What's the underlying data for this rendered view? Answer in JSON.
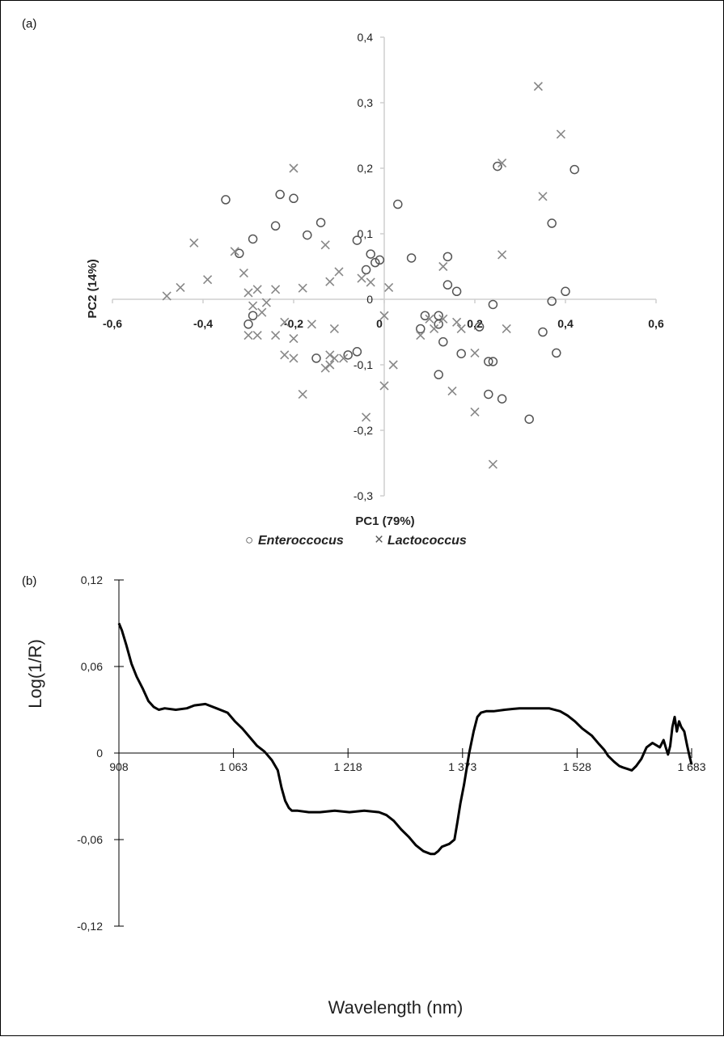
{
  "chart_data": [
    {
      "panel_label": "(a)",
      "type": "scatter",
      "xlabel": "PC1 (79%)",
      "ylabel": "PC2 (14%)",
      "xlim": [
        -0.6,
        0.6
      ],
      "ylim": [
        -0.3,
        0.4
      ],
      "x_ticks": [
        "-0,6",
        "-0,4",
        "-0,2",
        "0",
        "0,2",
        "0,4",
        "0,6"
      ],
      "y_ticks": [
        "0,4",
        "0,3",
        "0,2",
        "0,1",
        "0",
        "-0,1",
        "-0,2",
        "-0,3"
      ],
      "legend_position": "bottom",
      "series": [
        {
          "name": "Enteroccocus",
          "marker": "circle",
          "color": "#555555",
          "points": [
            [
              -0.35,
              0.152
            ],
            [
              -0.23,
              0.16
            ],
            [
              -0.2,
              0.154
            ],
            [
              -0.14,
              0.117
            ],
            [
              -0.24,
              0.112
            ],
            [
              -0.17,
              0.098
            ],
            [
              -0.29,
              0.092
            ],
            [
              -0.32,
              0.07
            ],
            [
              -0.06,
              0.09
            ],
            [
              -0.03,
              0.069
            ],
            [
              -0.01,
              0.06
            ],
            [
              -0.02,
              0.056
            ],
            [
              -0.04,
              0.045
            ],
            [
              0.03,
              0.145
            ],
            [
              0.06,
              0.063
            ],
            [
              0.14,
              0.065
            ],
            [
              0.14,
              0.022
            ],
            [
              0.16,
              0.012
            ],
            [
              -0.29,
              -0.025
            ],
            [
              -0.3,
              -0.038
            ],
            [
              -0.15,
              -0.09
            ],
            [
              -0.06,
              -0.08
            ],
            [
              -0.08,
              -0.085
            ],
            [
              0.09,
              -0.025
            ],
            [
              0.12,
              -0.025
            ],
            [
              0.08,
              -0.045
            ],
            [
              0.12,
              -0.038
            ],
            [
              0.13,
              -0.065
            ],
            [
              0.17,
              -0.083
            ],
            [
              0.21,
              -0.042
            ],
            [
              0.23,
              -0.095
            ],
            [
              0.24,
              -0.095
            ],
            [
              0.24,
              -0.008
            ],
            [
              0.12,
              -0.115
            ],
            [
              0.23,
              -0.145
            ],
            [
              0.26,
              -0.152
            ],
            [
              0.32,
              -0.183
            ],
            [
              0.25,
              0.203
            ],
            [
              0.42,
              0.198
            ],
            [
              0.37,
              0.116
            ],
            [
              0.37,
              -0.003
            ],
            [
              0.4,
              0.012
            ],
            [
              0.35,
              -0.05
            ],
            [
              0.38,
              -0.082
            ]
          ]
        },
        {
          "name": "Lactococcus",
          "marker": "x",
          "color": "#888888",
          "points": [
            [
              0.34,
              0.325
            ],
            [
              0.39,
              0.252
            ],
            [
              0.26,
              0.208
            ],
            [
              -0.2,
              0.2
            ],
            [
              0.35,
              0.157
            ],
            [
              -0.13,
              0.083
            ],
            [
              -0.42,
              0.086
            ],
            [
              -0.33,
              0.073
            ],
            [
              0.26,
              0.068
            ],
            [
              -0.31,
              0.04
            ],
            [
              0.13,
              0.05
            ],
            [
              -0.1,
              0.042
            ],
            [
              -0.05,
              0.032
            ],
            [
              -0.39,
              0.03
            ],
            [
              -0.12,
              0.027
            ],
            [
              -0.03,
              0.026
            ],
            [
              -0.45,
              0.018
            ],
            [
              -0.24,
              0.015
            ],
            [
              -0.18,
              0.017
            ],
            [
              0.01,
              0.018
            ],
            [
              -0.48,
              0.005
            ],
            [
              -0.3,
              0.01
            ],
            [
              -0.28,
              0.015
            ],
            [
              -0.26,
              -0.005
            ],
            [
              -0.29,
              -0.01
            ],
            [
              -0.27,
              -0.02
            ],
            [
              0.0,
              -0.025
            ],
            [
              0.1,
              -0.03
            ],
            [
              0.13,
              -0.03
            ],
            [
              0.16,
              -0.035
            ],
            [
              -0.22,
              -0.035
            ],
            [
              -0.16,
              -0.038
            ],
            [
              -0.11,
              -0.045
            ],
            [
              0.11,
              -0.045
            ],
            [
              0.17,
              -0.045
            ],
            [
              0.27,
              -0.045
            ],
            [
              -0.3,
              -0.055
            ],
            [
              -0.28,
              -0.055
            ],
            [
              -0.24,
              -0.055
            ],
            [
              -0.2,
              -0.06
            ],
            [
              0.08,
              -0.055
            ],
            [
              -0.22,
              -0.085
            ],
            [
              -0.2,
              -0.09
            ],
            [
              -0.12,
              -0.085
            ],
            [
              -0.11,
              -0.09
            ],
            [
              -0.09,
              -0.09
            ],
            [
              0.02,
              -0.1
            ],
            [
              0.2,
              -0.082
            ],
            [
              -0.12,
              -0.1
            ],
            [
              -0.13,
              -0.105
            ],
            [
              -0.18,
              -0.145
            ],
            [
              0.0,
              -0.132
            ],
            [
              0.15,
              -0.14
            ],
            [
              0.2,
              -0.172
            ],
            [
              -0.04,
              -0.18
            ],
            [
              0.24,
              -0.252
            ]
          ]
        }
      ]
    },
    {
      "panel_label": "(b)",
      "type": "line",
      "xlabel": "Wavelength (nm)",
      "ylabel": "Log(1/R)",
      "xlim": [
        908,
        1683
      ],
      "ylim": [
        -0.12,
        0.12
      ],
      "x_ticks": [
        "908",
        "1 063",
        "1 218",
        "1 373",
        "1 528",
        "1 683"
      ],
      "y_ticks": [
        "0,12",
        "0,06",
        "0",
        "-0,06",
        "-0,12"
      ],
      "color": "#000000",
      "series": [
        {
          "x": [
            908,
            912,
            918,
            925,
            932,
            940,
            948,
            955,
            962,
            970,
            985,
            1000,
            1010,
            1025,
            1040,
            1055,
            1065,
            1075,
            1085,
            1095,
            1105,
            1115,
            1123,
            1128,
            1133,
            1138,
            1142,
            1150,
            1165,
            1180,
            1200,
            1220,
            1240,
            1260,
            1270,
            1280,
            1290,
            1300,
            1310,
            1320,
            1330,
            1335,
            1340,
            1345,
            1355,
            1362,
            1366,
            1370,
            1375,
            1382,
            1388,
            1393,
            1398,
            1405,
            1415,
            1430,
            1450,
            1470,
            1490,
            1505,
            1515,
            1525,
            1535,
            1548,
            1558,
            1565,
            1570,
            1578,
            1585,
            1590,
            1596,
            1602,
            1608,
            1615,
            1622,
            1630,
            1640,
            1645,
            1648,
            1651,
            1654,
            1657,
            1660,
            1663,
            1666,
            1669,
            1673,
            1677,
            1680,
            1683
          ],
          "y": [
            0.09,
            0.085,
            0.075,
            0.062,
            0.053,
            0.045,
            0.036,
            0.032,
            0.03,
            0.031,
            0.03,
            0.031,
            0.033,
            0.034,
            0.031,
            0.028,
            0.022,
            0.017,
            0.011,
            0.005,
            0.001,
            -0.005,
            -0.012,
            -0.024,
            -0.033,
            -0.038,
            -0.04,
            -0.04,
            -0.041,
            -0.041,
            -0.04,
            -0.041,
            -0.04,
            -0.041,
            -0.043,
            -0.047,
            -0.053,
            -0.058,
            -0.064,
            -0.068,
            -0.07,
            -0.07,
            -0.068,
            -0.065,
            -0.063,
            -0.06,
            -0.048,
            -0.035,
            -0.022,
            0.0,
            0.015,
            0.025,
            0.028,
            0.029,
            0.029,
            0.03,
            0.031,
            0.031,
            0.031,
            0.029,
            0.026,
            0.022,
            0.017,
            0.012,
            0.006,
            0.002,
            -0.002,
            -0.006,
            -0.009,
            -0.01,
            -0.011,
            -0.012,
            -0.009,
            -0.004,
            0.004,
            0.007,
            0.004,
            0.009,
            0.004,
            -0.001,
            0.005,
            0.018,
            0.025,
            0.015,
            0.022,
            0.018,
            0.015,
            0.005,
            -0.002,
            -0.008
          ]
        }
      ]
    }
  ],
  "legend": {
    "enteroccocus_symbol": "○",
    "enteroccocus_label": "Enteroccocus",
    "lactococcus_symbol": "×",
    "lactococcus_label": "Lactococcus"
  }
}
